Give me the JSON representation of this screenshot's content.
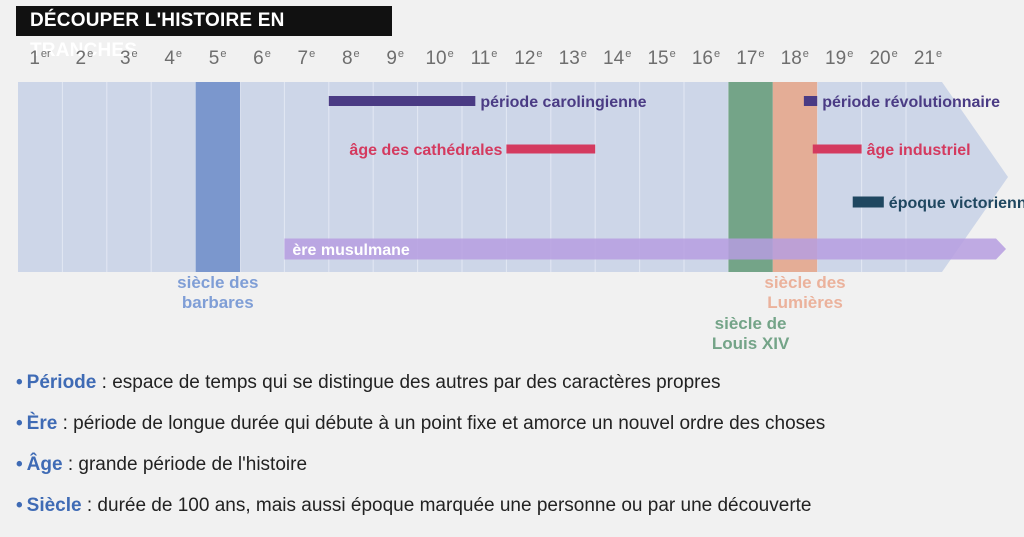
{
  "title": "DÉCOUPER L'HISTOIRE EN TRANCHES",
  "centuries": [
    {
      "num": "1",
      "suffix": "er"
    },
    {
      "num": "2",
      "suffix": "e"
    },
    {
      "num": "3",
      "suffix": "e"
    },
    {
      "num": "4",
      "suffix": "e"
    },
    {
      "num": "5",
      "suffix": "e"
    },
    {
      "num": "6",
      "suffix": "e"
    },
    {
      "num": "7",
      "suffix": "e"
    },
    {
      "num": "8",
      "suffix": "e"
    },
    {
      "num": "9",
      "suffix": "e"
    },
    {
      "num": "10",
      "suffix": "e"
    },
    {
      "num": "11",
      "suffix": "e"
    },
    {
      "num": "12",
      "suffix": "e"
    },
    {
      "num": "13",
      "suffix": "e"
    },
    {
      "num": "14",
      "suffix": "e"
    },
    {
      "num": "15",
      "suffix": "e"
    },
    {
      "num": "16",
      "suffix": "e"
    },
    {
      "num": "17",
      "suffix": "e"
    },
    {
      "num": "18",
      "suffix": "e"
    },
    {
      "num": "19",
      "suffix": "e"
    },
    {
      "num": "20",
      "suffix": "e"
    },
    {
      "num": "21",
      "suffix": "e"
    }
  ],
  "columns": [
    {
      "century": 5,
      "label": "siècle des barbares",
      "label_lines": [
        "siècle des",
        "barbares"
      ],
      "color": "#7b97cd",
      "label_color": "#7f9ed6"
    },
    {
      "century": 17,
      "label": "siècle de Louis XIV",
      "label_lines": [
        "siècle de",
        "Louis XIV"
      ],
      "color": "#74a488",
      "label_color": "#74a488"
    },
    {
      "century": 18,
      "label": "siècle des Lumières",
      "label_lines": [
        "siècle des",
        "Lumières"
      ],
      "color": "#e4ad96",
      "label_color": "#ebb29c"
    }
  ],
  "periods": [
    {
      "name": "période carolingienne",
      "start": 8.0,
      "end": 11.3,
      "color": "#4a3b84",
      "label_side": "right",
      "row": 1
    },
    {
      "name": "âge des cathédrales",
      "start": 12.0,
      "end": 14.0,
      "color": "#d43a5f",
      "label_side": "left",
      "row": 2
    },
    {
      "name": "période révolutionnaire",
      "start": 18.7,
      "end": 19.0,
      "color": "#4a3b84",
      "label_side": "right",
      "row": 1
    },
    {
      "name": "âge industriel",
      "start": 18.9,
      "end": 20.0,
      "color": "#d43a5f",
      "label_side": "right",
      "row": 2
    },
    {
      "name": "époque victorienne",
      "start": 19.8,
      "end": 20.5,
      "color": "#1f4760",
      "label_side": "right",
      "row": 3
    },
    {
      "name": "ère musulmane",
      "start": 7.0,
      "end": 22.0,
      "color": "#b69ee0",
      "label_side": "inside",
      "row": 4
    }
  ],
  "legend": [
    {
      "term": "Période",
      "definition": " : espace de temps qui se distingue des autres par des caractères propres"
    },
    {
      "term": "Ère",
      "definition": " : période de longue durée qui débute à un point fixe et amorce un nouvel ordre des choses"
    },
    {
      "term": "Âge",
      "definition": " : grande période de l'histoire"
    },
    {
      "term": "Siècle",
      "definition": " : durée de 100 ans, mais aussi époque marquée une personne ou par une découverte"
    }
  ],
  "colors": {
    "band": "#cdd6e8",
    "band_divider": "#e3e8f3",
    "title_bg": "#111111",
    "accent": "#3f6bb5"
  }
}
